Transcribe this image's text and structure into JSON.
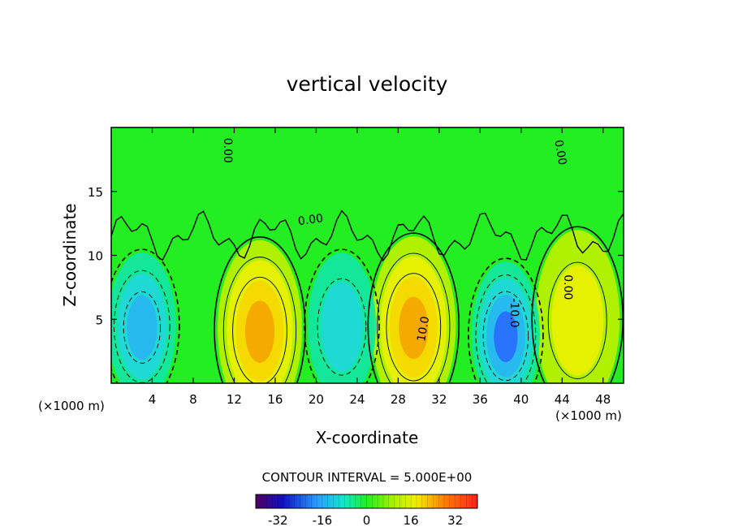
{
  "chart_data": {
    "type": "heatmap",
    "title": "vertical velocity",
    "xlabel": "X-coordinate",
    "ylabel": "Z-coordinate",
    "x_unit_left": "(×1000 m)",
    "x_unit_right": "(×1000 m)",
    "xlim": [
      0,
      50
    ],
    "ylim": [
      0,
      20
    ],
    "xticks": [
      4,
      8,
      12,
      16,
      20,
      24,
      28,
      32,
      36,
      40,
      44,
      48
    ],
    "yticks": [
      5,
      10,
      15
    ],
    "contour_interval_text": "CONTOUR INTERVAL = 5.000E+00",
    "contour_labels": [
      {
        "text": "0.00",
        "x": 11,
        "z": 18.2,
        "rot": 90
      },
      {
        "text": "0.00",
        "x": 19.5,
        "z": 12.5,
        "rot": -8
      },
      {
        "text": "0.00",
        "x": 43.5,
        "z": 18.0,
        "rot": 80
      },
      {
        "text": "0.00",
        "x": 44.2,
        "z": 7.5,
        "rot": 90
      },
      {
        "text": "10.0",
        "x": 30.8,
        "z": 4.2,
        "rot": -80
      },
      {
        "text": "-10.0",
        "x": 39.0,
        "z": 5.5,
        "rot": 90
      }
    ],
    "features": [
      {
        "kind": "updraft",
        "x": 14.5,
        "z": 4.2,
        "peak": 22
      },
      {
        "kind": "updraft",
        "x": 29.5,
        "z": 4.5,
        "peak": 20
      },
      {
        "kind": "updraft",
        "x": 45.5,
        "z": 5.0,
        "peak": 10
      },
      {
        "kind": "downdraft",
        "x": 3.0,
        "z": 4.5,
        "peak": -14
      },
      {
        "kind": "downdraft",
        "x": 22.5,
        "z": 4.5,
        "peak": -8
      },
      {
        "kind": "downdraft",
        "x": 38.5,
        "z": 3.8,
        "peak": -21
      }
    ],
    "colorbar": {
      "min": -40,
      "max": 40,
      "tick_labels": [
        "-32",
        "-16",
        "0",
        "16",
        "32"
      ],
      "tick_values": [
        -32,
        -16,
        0,
        16,
        32
      ]
    },
    "colors": {
      "background": "#22ee22",
      "positive_peak": "#ff8800",
      "negative_peak": "#2244ff",
      "contour_line": "#000000"
    }
  }
}
